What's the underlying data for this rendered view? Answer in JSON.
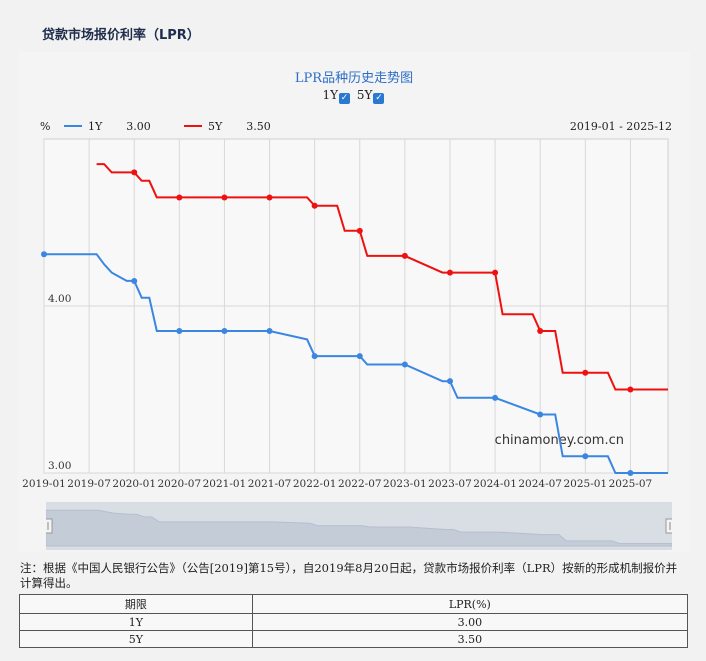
{
  "page": {
    "title": "贷款市场报价利率（LPR）"
  },
  "chart": {
    "title": "LPR品种历史走势图",
    "toggles": [
      {
        "label": "1Y",
        "checked": true
      },
      {
        "label": "5Y",
        "checked": true
      }
    ],
    "unit": "%",
    "legend": [
      {
        "name": "1Y",
        "value": "3.00",
        "color": "#3a86e0"
      },
      {
        "name": "5Y",
        "value": "3.50",
        "color": "#ee1111"
      }
    ],
    "range": "2019-01 - 2025-12",
    "watermark": "chinamoney.com.cn"
  },
  "chart_data": {
    "type": "line",
    "xlabel": "",
    "ylabel": "%",
    "x_ticks": [
      "2019-01",
      "2019-07",
      "2020-01",
      "2020-07",
      "2021-01",
      "2021-07",
      "2022-01",
      "2022-07",
      "2023-01",
      "2023-07",
      "2024-01",
      "2024-07",
      "2025-01",
      "2025-07"
    ],
    "y_ticks": [
      "3.00",
      "4.00"
    ],
    "ylim": [
      3.0,
      5.0
    ],
    "xlim": [
      "2019-01",
      "2025-12"
    ],
    "grid": true,
    "legend_position": "top-left",
    "series": [
      {
        "name": "1Y",
        "color": "#3a86e0",
        "points": [
          [
            "2019-01",
            4.31
          ],
          [
            "2019-08",
            4.31
          ],
          [
            "2019-09",
            4.25
          ],
          [
            "2019-10",
            4.2
          ],
          [
            "2019-12",
            4.15
          ],
          [
            "2020-01",
            4.15
          ],
          [
            "2020-02",
            4.05
          ],
          [
            "2020-03",
            4.05
          ],
          [
            "2020-04",
            3.85
          ],
          [
            "2020-07",
            3.85
          ],
          [
            "2021-01",
            3.85
          ],
          [
            "2021-07",
            3.85
          ],
          [
            "2021-12",
            3.8
          ],
          [
            "2022-01",
            3.7
          ],
          [
            "2022-07",
            3.7
          ],
          [
            "2022-08",
            3.65
          ],
          [
            "2023-01",
            3.65
          ],
          [
            "2023-06",
            3.55
          ],
          [
            "2023-07",
            3.55
          ],
          [
            "2023-08",
            3.45
          ],
          [
            "2024-01",
            3.45
          ],
          [
            "2024-07",
            3.35
          ],
          [
            "2024-09",
            3.35
          ],
          [
            "2024-10",
            3.1
          ],
          [
            "2025-01",
            3.1
          ],
          [
            "2025-04",
            3.1
          ],
          [
            "2025-05",
            3.0
          ],
          [
            "2025-07",
            3.0
          ],
          [
            "2025-12",
            3.0
          ]
        ],
        "markers": [
          "2019-01",
          "2019-07",
          "2020-01",
          "2020-07",
          "2021-01",
          "2021-07",
          "2022-01",
          "2022-07",
          "2023-01",
          "2023-07",
          "2024-01",
          "2024-07",
          "2025-01",
          "2025-07"
        ]
      },
      {
        "name": "5Y",
        "color": "#ee1111",
        "points": [
          [
            "2019-08",
            4.85
          ],
          [
            "2019-09",
            4.85
          ],
          [
            "2019-10",
            4.8
          ],
          [
            "2019-12",
            4.8
          ],
          [
            "2020-01",
            4.8
          ],
          [
            "2020-02",
            4.75
          ],
          [
            "2020-03",
            4.75
          ],
          [
            "2020-04",
            4.65
          ],
          [
            "2020-07",
            4.65
          ],
          [
            "2021-01",
            4.65
          ],
          [
            "2021-07",
            4.65
          ],
          [
            "2021-12",
            4.65
          ],
          [
            "2022-01",
            4.6
          ],
          [
            "2022-04",
            4.6
          ],
          [
            "2022-05",
            4.45
          ],
          [
            "2022-07",
            4.45
          ],
          [
            "2022-08",
            4.3
          ],
          [
            "2023-01",
            4.3
          ],
          [
            "2023-06",
            4.2
          ],
          [
            "2023-07",
            4.2
          ],
          [
            "2024-01",
            4.2
          ],
          [
            "2024-02",
            3.95
          ],
          [
            "2024-06",
            3.95
          ],
          [
            "2024-07",
            3.85
          ],
          [
            "2024-09",
            3.85
          ],
          [
            "2024-10",
            3.6
          ],
          [
            "2025-01",
            3.6
          ],
          [
            "2025-04",
            3.6
          ],
          [
            "2025-05",
            3.5
          ],
          [
            "2025-07",
            3.5
          ],
          [
            "2025-12",
            3.5
          ]
        ],
        "markers": [
          "2020-01",
          "2020-07",
          "2021-01",
          "2021-07",
          "2022-01",
          "2022-07",
          "2023-01",
          "2023-07",
          "2024-01",
          "2024-07",
          "2025-01",
          "2025-07"
        ]
      }
    ]
  },
  "note": "注：根据《中国人民银行公告》（公告[2019]第15号），自2019年8月20日起，贷款市场报价利率（LPR）按新的形成机制报价并计算得出。",
  "table": {
    "headers": [
      "期限",
      "LPR(%)"
    ],
    "rows": [
      [
        "1Y",
        "3.00"
      ],
      [
        "5Y",
        "3.50"
      ]
    ]
  }
}
